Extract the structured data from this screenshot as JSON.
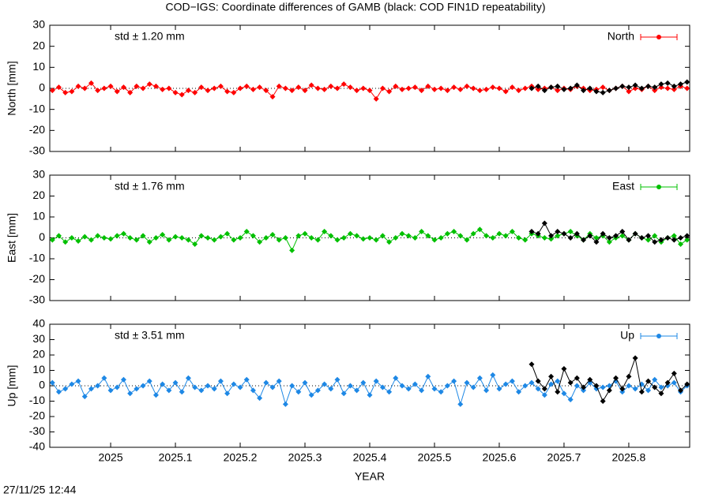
{
  "title": "COD−IGS: Coordinate differences of GAMB (black: COD FIN1D repeatability)",
  "xlabel": "YEAR",
  "timestamp": "27/11/25 12:44",
  "chart_data": [
    {
      "type": "line",
      "ylabel": "North [mm]",
      "annotation": "std ± 1.20 mm",
      "legend": "upper right",
      "xlim": [
        2024.906,
        2025.894
      ],
      "xticks": [
        2025,
        2025.1,
        2025.2,
        2025.3,
        2025.4,
        2025.5,
        2025.6,
        2025.7,
        2025.8
      ],
      "ylim": [
        -30,
        30
      ],
      "yticks": [
        -30,
        -20,
        -10,
        0,
        10,
        20,
        30
      ],
      "series": [
        {
          "name": "North",
          "color": "#ff0000",
          "x": [
            2024.91,
            2024.92,
            2024.93,
            2024.94,
            2024.95,
            2024.96,
            2024.97,
            2024.98,
            2024.99,
            2025.0,
            2025.01,
            2025.02,
            2025.03,
            2025.04,
            2025.05,
            2025.06,
            2025.07,
            2025.08,
            2025.09,
            2025.1,
            2025.11,
            2025.12,
            2025.13,
            2025.14,
            2025.15,
            2025.16,
            2025.17,
            2025.18,
            2025.19,
            2025.2,
            2025.21,
            2025.22,
            2025.23,
            2025.24,
            2025.25,
            2025.26,
            2025.27,
            2025.28,
            2025.29,
            2025.3,
            2025.31,
            2025.32,
            2025.33,
            2025.34,
            2025.35,
            2025.36,
            2025.37,
            2025.38,
            2025.39,
            2025.4,
            2025.41,
            2025.42,
            2025.43,
            2025.44,
            2025.45,
            2025.46,
            2025.47,
            2025.48,
            2025.49,
            2025.5,
            2025.51,
            2025.52,
            2025.53,
            2025.54,
            2025.55,
            2025.56,
            2025.57,
            2025.58,
            2025.59,
            2025.6,
            2025.61,
            2025.62,
            2025.63,
            2025.64,
            2025.65,
            2025.66,
            2025.67,
            2025.68,
            2025.69,
            2025.7,
            2025.71,
            2025.72,
            2025.73,
            2025.74,
            2025.75,
            2025.76,
            2025.77,
            2025.78,
            2025.79,
            2025.8,
            2025.81,
            2025.82,
            2025.83,
            2025.84,
            2025.85,
            2025.86,
            2025.87,
            2025.88,
            2025.89
          ],
          "values": [
            -1,
            0.5,
            -2,
            -1.5,
            1,
            0,
            2.5,
            -1,
            0,
            1,
            -1.5,
            0.5,
            -2,
            1,
            0,
            2,
            1,
            -0.5,
            0,
            -2,
            -3,
            -1,
            -2,
            0.5,
            -1,
            0,
            1,
            -1.5,
            -2,
            0,
            1,
            -0.5,
            0.5,
            -1,
            -4,
            1,
            0,
            -1,
            0.5,
            -1,
            1.5,
            0,
            -0.5,
            1,
            0,
            2,
            0.5,
            -1,
            0,
            -1,
            -5,
            0,
            -1.5,
            1,
            -0.5,
            0,
            0.5,
            -1,
            1,
            -0.5,
            0,
            -1,
            0.5,
            -0.5,
            1,
            0,
            -1,
            -0.5,
            0.5,
            0,
            -1.5,
            0.5,
            -1,
            0,
            1,
            -0.5,
            0,
            0.5,
            -1,
            0,
            -0.5,
            1,
            0,
            -1,
            -0.5,
            0.5,
            -1,
            0,
            1,
            -1.5,
            0,
            -0.5,
            1,
            -1,
            0.5,
            0,
            -0.5,
            1,
            0
          ]
        },
        {
          "color": "#000000",
          "x": [
            2025.65,
            2025.66,
            2025.67,
            2025.68,
            2025.69,
            2025.7,
            2025.71,
            2025.72,
            2025.73,
            2025.74,
            2025.75,
            2025.76,
            2025.77,
            2025.78,
            2025.79,
            2025.8,
            2025.81,
            2025.82,
            2025.83,
            2025.84,
            2025.85,
            2025.86,
            2025.87,
            2025.88,
            2025.89
          ],
          "values": [
            0,
            1,
            -1,
            0.5,
            1,
            -0.5,
            0,
            1.5,
            -1,
            0,
            -1.5,
            -2,
            -1,
            0,
            1,
            0.5,
            1.5,
            0,
            1,
            0.5,
            2,
            2.5,
            1,
            2,
            3
          ]
        }
      ]
    },
    {
      "type": "line",
      "ylabel": "East [mm]",
      "annotation": "std ± 1.76 mm",
      "legend": "upper right",
      "xlim": [
        2024.906,
        2025.894
      ],
      "xticks": [
        2025,
        2025.1,
        2025.2,
        2025.3,
        2025.4,
        2025.5,
        2025.6,
        2025.7,
        2025.8
      ],
      "ylim": [
        -30,
        30
      ],
      "yticks": [
        -30,
        -20,
        -10,
        0,
        10,
        20,
        30
      ],
      "series": [
        {
          "name": "East",
          "color": "#00c000",
          "x": [
            2024.91,
            2024.92,
            2024.93,
            2024.94,
            2024.95,
            2024.96,
            2024.97,
            2024.98,
            2024.99,
            2025.0,
            2025.01,
            2025.02,
            2025.03,
            2025.04,
            2025.05,
            2025.06,
            2025.07,
            2025.08,
            2025.09,
            2025.1,
            2025.11,
            2025.12,
            2025.13,
            2025.14,
            2025.15,
            2025.16,
            2025.17,
            2025.18,
            2025.19,
            2025.2,
            2025.21,
            2025.22,
            2025.23,
            2025.24,
            2025.25,
            2025.26,
            2025.27,
            2025.28,
            2025.29,
            2025.3,
            2025.31,
            2025.32,
            2025.33,
            2025.34,
            2025.35,
            2025.36,
            2025.37,
            2025.38,
            2025.39,
            2025.4,
            2025.41,
            2025.42,
            2025.43,
            2025.44,
            2025.45,
            2025.46,
            2025.47,
            2025.48,
            2025.49,
            2025.5,
            2025.51,
            2025.52,
            2025.53,
            2025.54,
            2025.55,
            2025.56,
            2025.57,
            2025.58,
            2025.59,
            2025.6,
            2025.61,
            2025.62,
            2025.63,
            2025.64,
            2025.65,
            2025.66,
            2025.67,
            2025.68,
            2025.69,
            2025.7,
            2025.71,
            2025.72,
            2025.73,
            2025.74,
            2025.75,
            2025.76,
            2025.77,
            2025.78,
            2025.79,
            2025.8,
            2025.81,
            2025.82,
            2025.83,
            2025.84,
            2025.85,
            2025.86,
            2025.87,
            2025.88,
            2025.89
          ],
          "values": [
            -1,
            1,
            -2,
            0,
            -1.5,
            0.5,
            -1,
            1,
            0,
            -0.5,
            1,
            2,
            0,
            -1,
            1,
            -2,
            0,
            1.5,
            -1,
            0.5,
            0,
            -1,
            -3,
            1,
            0,
            -1,
            0.5,
            2,
            -1,
            0,
            3,
            1,
            -2,
            0,
            1.5,
            -1,
            0,
            -6,
            1,
            2,
            0,
            -1,
            3,
            1,
            -1,
            0,
            2,
            1,
            -0.5,
            0,
            -1,
            1,
            -2,
            0,
            2,
            1,
            0,
            3,
            1,
            -1,
            0,
            2,
            3,
            1,
            -1,
            2,
            4,
            1,
            0,
            2,
            1,
            3,
            0,
            -1,
            2,
            1,
            0,
            -0.5,
            1,
            2,
            3,
            1,
            -1,
            2,
            0,
            1,
            -2,
            0,
            1,
            -1,
            2,
            0,
            -1,
            1,
            -2,
            0,
            1,
            -3,
            -1
          ]
        },
        {
          "color": "#000000",
          "x": [
            2025.65,
            2025.66,
            2025.67,
            2025.68,
            2025.69,
            2025.7,
            2025.71,
            2025.72,
            2025.73,
            2025.74,
            2025.75,
            2025.76,
            2025.77,
            2025.78,
            2025.79,
            2025.8,
            2025.81,
            2025.82,
            2025.83,
            2025.84,
            2025.85,
            2025.86,
            2025.87,
            2025.88,
            2025.89
          ],
          "values": [
            3,
            2,
            7,
            1,
            3,
            2,
            0,
            2,
            -1,
            1,
            -2,
            2,
            0,
            1,
            3,
            -1,
            2,
            0,
            1,
            -2,
            -1,
            0,
            -1,
            0,
            1
          ]
        }
      ]
    },
    {
      "type": "line",
      "ylabel": "Up [mm]",
      "annotation": "std ± 3.51 mm",
      "legend": "upper right",
      "xlim": [
        2024.906,
        2025.894
      ],
      "xticks": [
        2025,
        2025.1,
        2025.2,
        2025.3,
        2025.4,
        2025.5,
        2025.6,
        2025.7,
        2025.8
      ],
      "ylim": [
        -40,
        40
      ],
      "yticks": [
        -40,
        -30,
        -20,
        -10,
        0,
        10,
        20,
        30,
        40
      ],
      "series": [
        {
          "name": "Up",
          "color": "#1e88e5",
          "x": [
            2024.91,
            2024.92,
            2024.93,
            2024.94,
            2024.95,
            2024.96,
            2024.97,
            2024.98,
            2024.99,
            2025.0,
            2025.01,
            2025.02,
            2025.03,
            2025.04,
            2025.05,
            2025.06,
            2025.07,
            2025.08,
            2025.09,
            2025.1,
            2025.11,
            2025.12,
            2025.13,
            2025.14,
            2025.15,
            2025.16,
            2025.17,
            2025.18,
            2025.19,
            2025.2,
            2025.21,
            2025.22,
            2025.23,
            2025.24,
            2025.25,
            2025.26,
            2025.27,
            2025.28,
            2025.29,
            2025.3,
            2025.31,
            2025.32,
            2025.33,
            2025.34,
            2025.35,
            2025.36,
            2025.37,
            2025.38,
            2025.39,
            2025.4,
            2025.41,
            2025.42,
            2025.43,
            2025.44,
            2025.45,
            2025.46,
            2025.47,
            2025.48,
            2025.49,
            2025.5,
            2025.51,
            2025.52,
            2025.53,
            2025.54,
            2025.55,
            2025.56,
            2025.57,
            2025.58,
            2025.59,
            2025.6,
            2025.61,
            2025.62,
            2025.63,
            2025.64,
            2025.65,
            2025.66,
            2025.67,
            2025.68,
            2025.69,
            2025.7,
            2025.71,
            2025.72,
            2025.73,
            2025.74,
            2025.75,
            2025.76,
            2025.77,
            2025.78,
            2025.79,
            2025.8,
            2025.81,
            2025.82,
            2025.83,
            2025.84,
            2025.85,
            2025.86,
            2025.87,
            2025.88,
            2025.89
          ],
          "values": [
            2,
            -4,
            -2,
            1,
            3,
            -7,
            -2,
            0,
            5,
            -3,
            -1,
            4,
            -5,
            -2,
            0,
            3,
            -6,
            1,
            -3,
            2,
            -4,
            5,
            -1,
            -3,
            0,
            -2,
            3,
            -5,
            1,
            -1,
            4,
            -3,
            -8,
            2,
            -1,
            3,
            -12,
            0,
            -4,
            2,
            -6,
            -3,
            1,
            -2,
            4,
            -5,
            0,
            -3,
            2,
            -6,
            3,
            -1,
            -4,
            5,
            0,
            -2,
            1,
            -3,
            6,
            -2,
            -4,
            0,
            3,
            -12,
            2,
            -1,
            5,
            -3,
            7,
            -2,
            1,
            3,
            -4,
            0,
            2,
            -2,
            -6,
            1,
            3,
            -5,
            -9,
            0,
            -3,
            2,
            -2,
            -1,
            0,
            3,
            -4,
            0,
            -2,
            1,
            -3,
            4,
            -1,
            0,
            2,
            -4,
            0
          ]
        },
        {
          "color": "#000000",
          "x": [
            2025.65,
            2025.66,
            2025.67,
            2025.68,
            2025.69,
            2025.7,
            2025.71,
            2025.72,
            2025.73,
            2025.74,
            2025.75,
            2025.76,
            2025.77,
            2025.78,
            2025.79,
            2025.8,
            2025.81,
            2025.82,
            2025.83,
            2025.84,
            2025.85,
            2025.86,
            2025.87,
            2025.88,
            2025.89
          ],
          "values": [
            14,
            3,
            -2,
            6,
            -4,
            11,
            2,
            5,
            -1,
            4,
            0,
            -10,
            -3,
            5,
            -2,
            6,
            18,
            -4,
            3,
            -1,
            -5,
            2,
            8,
            -3,
            1
          ]
        }
      ]
    }
  ]
}
